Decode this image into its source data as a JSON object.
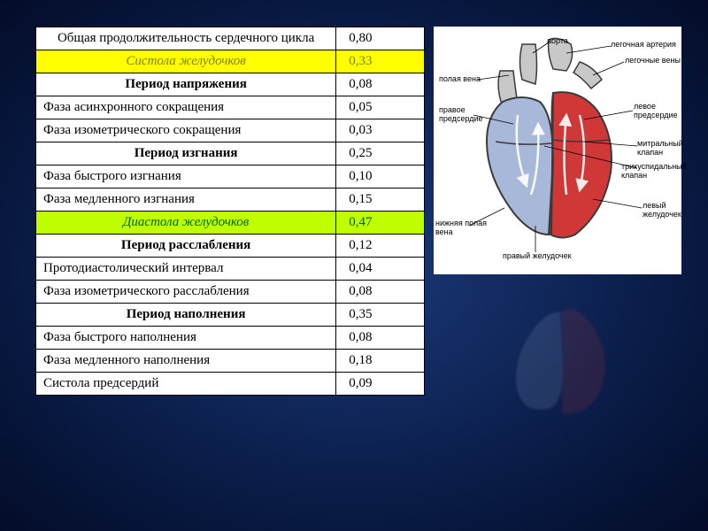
{
  "table": {
    "rows": [
      {
        "label": "Общая продолжительность сердечного цикла",
        "value": "0,80",
        "cls": "center",
        "labelCls": "center"
      },
      {
        "label": "Систола желудочков",
        "value": "0,33",
        "cls": "center italic hl-yellow",
        "labelCls": "center italic hl-yellow",
        "valCls": "hl-yellow"
      },
      {
        "label": "Период напряжения",
        "value": "0,08",
        "cls": "center bold",
        "labelCls": "center bold"
      },
      {
        "label": "Фаза асинхронного сокращения",
        "value": "0,05"
      },
      {
        "label": "Фаза изометрического сокращения",
        "value": "0,03"
      },
      {
        "label": "Период изгнания",
        "value": "0,25",
        "cls": "center bold",
        "labelCls": "center bold"
      },
      {
        "label": "Фаза быстрого изгнания",
        "value": "0,10"
      },
      {
        "label": "Фаза медленного изгнания",
        "value": "0,15"
      },
      {
        "label": "Диастола желудочков",
        "value": "0,47",
        "cls": "center italic hl-green",
        "labelCls": "center italic hl-green",
        "valCls": "hl-green"
      },
      {
        "label": "Период расслабления",
        "value": "0,12",
        "cls": "center bold",
        "labelCls": "center bold"
      },
      {
        "label": "Протодиастолический интервал",
        "value": "0,04"
      },
      {
        "label": "Фаза изометрического расслабления",
        "value": "0,08"
      },
      {
        "label": "Период наполнения",
        "value": "0,35",
        "cls": "center bold",
        "labelCls": "center bold"
      },
      {
        "label": "Фаза быстрого наполнения",
        "value": "0,08"
      },
      {
        "label": "Фаза медленного наполнения",
        "value": "0,18"
      },
      {
        "label": "  Систола предсердий",
        "value": "0,09"
      }
    ]
  },
  "heart": {
    "labels": {
      "aorta": "аорта",
      "pulm_artery": "легочная артерия",
      "pulm_veins": "легочные вены",
      "vena_cava": "полая вена",
      "right_atrium": "правое\nпредсердие",
      "left_atrium": "левое\nпредсердие",
      "mitral": "митральный\nклапан",
      "tricuspid": "трикуспидальный\nклапан",
      "left_ventricle": "левый\nжелудочек",
      "right_ventricle": "правый желудочек",
      "inf_vena_cava": "нижняя полая\nвена"
    },
    "colors": {
      "right_fill": "#a8b8d8",
      "left_fill": "#d03838",
      "outline": "#3a3a3a",
      "vessel": "#c8c8c8",
      "arrow": "#ffffff"
    }
  }
}
